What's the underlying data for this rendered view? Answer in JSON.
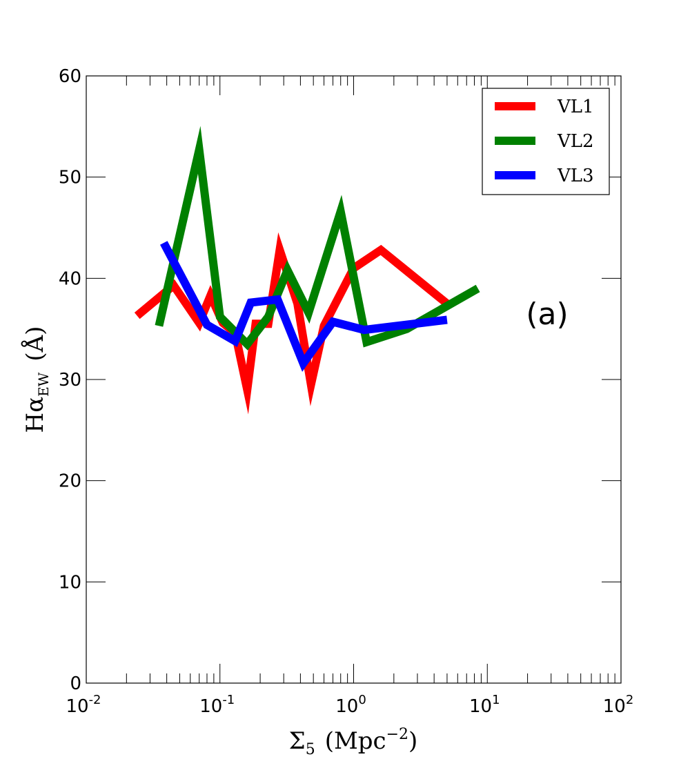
{
  "chart_data": {
    "type": "line",
    "xscale": "log",
    "xlim": [
      0.01,
      100
    ],
    "ylim": [
      0,
      60
    ],
    "x_ticks": [
      {
        "value": 0.01,
        "base": "10",
        "exp": "-2"
      },
      {
        "value": 0.1,
        "base": "10",
        "exp": "-1"
      },
      {
        "value": 1,
        "base": "10",
        "exp": "0"
      },
      {
        "value": 10,
        "base": "10",
        "exp": "1"
      },
      {
        "value": 100,
        "base": "10",
        "exp": "2"
      }
    ],
    "y_ticks": [
      "0",
      "10",
      "20",
      "30",
      "40",
      "50",
      "60"
    ],
    "xlabel": {
      "main": "Σ",
      "sub": "5",
      "unit_open": "(Mpc",
      "unit_exp": "−2",
      "unit_close": ")"
    },
    "ylabel": {
      "main": "Hα",
      "sub": "EW",
      "unit": "(Å)"
    },
    "annotation": "(a)",
    "legend_position": "upper right",
    "grid": false,
    "series": [
      {
        "name": "VL1",
        "color": "#ff0000",
        "points": [
          [
            0.024,
            36.3
          ],
          [
            0.045,
            39.3
          ],
          [
            0.07,
            35.6
          ],
          [
            0.085,
            38.3
          ],
          [
            0.105,
            35.6
          ],
          [
            0.13,
            34.6
          ],
          [
            0.16,
            29.0
          ],
          [
            0.185,
            35.5
          ],
          [
            0.23,
            35.5
          ],
          [
            0.28,
            42.8
          ],
          [
            0.38,
            37.5
          ],
          [
            0.48,
            29.5
          ],
          [
            0.6,
            35.3
          ],
          [
            1.0,
            41.0
          ],
          [
            1.6,
            42.8
          ],
          [
            5.0,
            37.5
          ]
        ]
      },
      {
        "name": "VL2",
        "color": "#008000",
        "points": [
          [
            0.035,
            35.3
          ],
          [
            0.07,
            52.7
          ],
          [
            0.1,
            36.2
          ],
          [
            0.16,
            33.5
          ],
          [
            0.23,
            36.2
          ],
          [
            0.32,
            40.8
          ],
          [
            0.46,
            36.6
          ],
          [
            0.8,
            46.6
          ],
          [
            1.25,
            33.7
          ],
          [
            2.5,
            35.0
          ],
          [
            8.5,
            39.0
          ]
        ]
      },
      {
        "name": "VL3",
        "color": "#0000ff",
        "points": [
          [
            0.038,
            43.5
          ],
          [
            0.08,
            35.4
          ],
          [
            0.13,
            33.8
          ],
          [
            0.17,
            37.6
          ],
          [
            0.27,
            37.9
          ],
          [
            0.42,
            31.6
          ],
          [
            0.7,
            35.7
          ],
          [
            1.2,
            34.9
          ],
          [
            5.0,
            35.9
          ]
        ]
      }
    ]
  }
}
